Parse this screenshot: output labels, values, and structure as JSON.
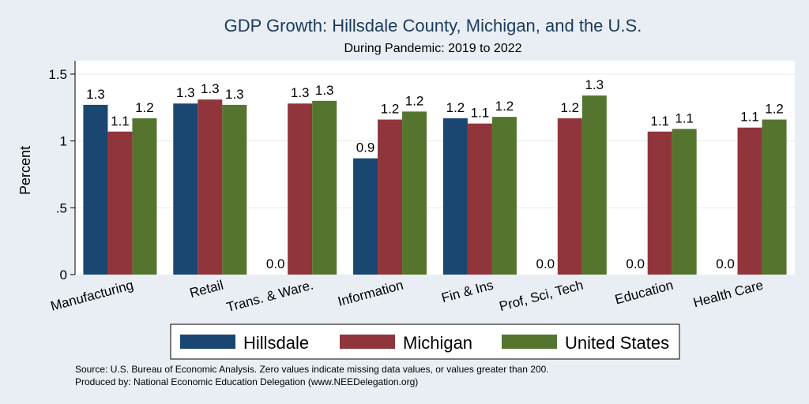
{
  "chart_data": {
    "type": "bar",
    "title": "GDP Growth: Hillsdale County, Michigan, and the U.S.",
    "subtitle": "During Pandemic: 2019 to 2022",
    "ylabel": "Percent",
    "xlabel": "",
    "ylim": [
      0,
      1.6
    ],
    "yticks": [
      0,
      0.5,
      1,
      1.5
    ],
    "ytick_labels": [
      "0",
      ".5",
      "1",
      "1.5"
    ],
    "grid": true,
    "legend_position": "bottom",
    "categories": [
      "Manufacturing",
      "Retail",
      "Trans. & Ware.",
      "Information",
      "Fin & Ins",
      "Prof, Sci, Tech",
      "Education",
      "Health Care"
    ],
    "series": [
      {
        "name": "Hillsdale",
        "color": "#1a4672",
        "values": [
          1.27,
          1.28,
          0,
          0.87,
          1.17,
          0,
          0,
          0
        ],
        "labels": [
          "1.3",
          "1.3",
          "0.0",
          "0.9",
          "1.2",
          "0.0",
          "0.0",
          "0.0"
        ]
      },
      {
        "name": "Michigan",
        "color": "#90353b",
        "values": [
          1.07,
          1.31,
          1.28,
          1.16,
          1.13,
          1.17,
          1.07,
          1.1
        ],
        "labels": [
          "1.1",
          "1.3",
          "1.3",
          "1.2",
          "1.1",
          "1.2",
          "1.1",
          "1.1"
        ]
      },
      {
        "name": "United States",
        "color": "#55752f",
        "values": [
          1.17,
          1.27,
          1.3,
          1.22,
          1.18,
          1.34,
          1.09,
          1.16
        ],
        "labels": [
          "1.2",
          "1.3",
          "1.3",
          "1.2",
          "1.2",
          "1.3",
          "1.1",
          "1.2"
        ]
      }
    ],
    "notes": [
      "Source: U.S. Bureau of Economic Analysis. Zero values indicate missing data values, or values greater than 200.",
      "Produced by: National Economic Education Delegation (www.NEEDelegation.org)"
    ]
  }
}
